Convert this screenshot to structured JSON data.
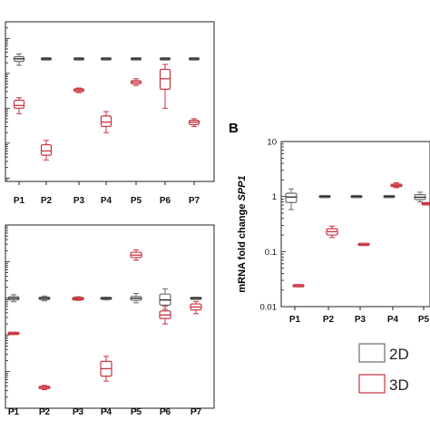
{
  "colors": {
    "2D": "#6b6b6b",
    "3D": "#c8323f",
    "axis": "#222222",
    "median": "#222222"
  },
  "legend": {
    "items": [
      {
        "label": "2D",
        "color": "#6b6b6b"
      },
      {
        "label": "3D",
        "color": "#c8323f"
      }
    ]
  },
  "chart_data": [
    {
      "type": "boxplot",
      "panel": "",
      "scale": "log",
      "categories": [
        "P1",
        "P2",
        "P3",
        "P4",
        "P5",
        "P6",
        "P7"
      ],
      "ylabel": "",
      "yticks": [],
      "ylim": [
        0.0008,
        30
      ],
      "series": [
        {
          "name": "2D",
          "boxes": [
            {
              "cat": "P1",
              "min": 1.7,
              "q1": 2.2,
              "median": 2.6,
              "q3": 3.0,
              "max": 3.6
            },
            {
              "cat": "P2",
              "min": 2.45,
              "q1": 2.5,
              "median": 2.6,
              "q3": 2.7,
              "max": 2.75
            },
            {
              "cat": "P3",
              "min": 2.45,
              "q1": 2.5,
              "median": 2.6,
              "q3": 2.7,
              "max": 2.75
            },
            {
              "cat": "P4",
              "min": 2.5,
              "q1": 2.55,
              "median": 2.6,
              "q3": 2.65,
              "max": 2.7
            },
            {
              "cat": "P5",
              "min": 2.45,
              "q1": 2.5,
              "median": 2.6,
              "q3": 2.7,
              "max": 2.75
            },
            {
              "cat": "P6",
              "min": 2.5,
              "q1": 2.55,
              "median": 2.6,
              "q3": 2.65,
              "max": 2.7
            },
            {
              "cat": "P7",
              "min": 2.6,
              "q1": 2.6,
              "median": 2.6,
              "q3": 2.6,
              "max": 2.6
            }
          ]
        },
        {
          "name": "3D",
          "boxes": [
            {
              "cat": "P1",
              "min": 0.07,
              "q1": 0.1,
              "median": 0.12,
              "q3": 0.17,
              "max": 0.2
            },
            {
              "cat": "P2",
              "min": 0.0033,
              "q1": 0.0045,
              "median": 0.006,
              "q3": 0.009,
              "max": 0.012
            },
            {
              "cat": "P3",
              "min": 0.28,
              "q1": 0.3,
              "median": 0.33,
              "q3": 0.36,
              "max": 0.38
            },
            {
              "cat": "P4",
              "min": 0.02,
              "q1": 0.03,
              "median": 0.04,
              "q3": 0.06,
              "max": 0.08
            },
            {
              "cat": "P5",
              "min": 0.45,
              "q1": 0.5,
              "median": 0.56,
              "q3": 0.62,
              "max": 0.7
            },
            {
              "cat": "P6",
              "min": 0.1,
              "q1": 0.35,
              "median": 0.7,
              "q3": 1.3,
              "max": 1.8
            },
            {
              "cat": "P7",
              "min": 0.03,
              "q1": 0.034,
              "median": 0.04,
              "q3": 0.045,
              "max": 0.05
            }
          ]
        }
      ]
    },
    {
      "type": "boxplot",
      "panel": "",
      "scale": "log",
      "categories": [
        "P1",
        "P2",
        "P3",
        "P4",
        "P5",
        "P6",
        "P7"
      ],
      "ylabel": "",
      "yticks": [],
      "ylim": [
        0.001,
        100
      ],
      "series": [
        {
          "name": "2D",
          "boxes": [
            {
              "cat": "P1",
              "min": 0.8,
              "q1": 0.9,
              "median": 1.0,
              "q3": 1.1,
              "max": 1.25
            },
            {
              "cat": "P2",
              "min": 0.85,
              "q1": 0.92,
              "median": 1.0,
              "q3": 1.08,
              "max": 1.15
            },
            {
              "cat": "P3",
              "min": 0.88,
              "q1": 0.94,
              "median": 1.0,
              "q3": 1.05,
              "max": 1.1
            },
            {
              "cat": "P4",
              "min": 0.9,
              "q1": 0.95,
              "median": 1.0,
              "q3": 1.04,
              "max": 1.08
            },
            {
              "cat": "P5",
              "min": 0.75,
              "q1": 0.88,
              "median": 1.0,
              "q3": 1.12,
              "max": 1.35
            },
            {
              "cat": "P6",
              "min": 0.5,
              "q1": 0.65,
              "median": 0.9,
              "q3": 1.3,
              "max": 1.8
            },
            {
              "cat": "P7",
              "min": 1.0,
              "q1": 1.0,
              "median": 1.0,
              "q3": 1.0,
              "max": 1.0
            }
          ]
        },
        {
          "name": "3D",
          "boxes": [
            {
              "cat": "P1",
              "min": 0.11,
              "q1": 0.11,
              "median": 0.11,
              "q3": 0.11,
              "max": 0.11
            },
            {
              "cat": "P2",
              "min": 0.0032,
              "q1": 0.0035,
              "median": 0.0037,
              "q3": 0.0039,
              "max": 0.0042
            },
            {
              "cat": "P3",
              "min": 0.88,
              "q1": 0.92,
              "median": 0.97,
              "q3": 1.02,
              "max": 1.07
            },
            {
              "cat": "P4",
              "min": 0.0055,
              "q1": 0.0075,
              "median": 0.012,
              "q3": 0.019,
              "max": 0.026
            },
            {
              "cat": "P5",
              "min": 11,
              "q1": 13,
              "median": 15,
              "q3": 18,
              "max": 21
            },
            {
              "cat": "P6",
              "min": 0.2,
              "q1": 0.28,
              "median": 0.35,
              "q3": 0.45,
              "max": 0.6
            },
            {
              "cat": "P7",
              "min": 0.38,
              "q1": 0.48,
              "median": 0.58,
              "q3": 0.7,
              "max": 0.82
            }
          ]
        }
      ]
    },
    {
      "type": "boxplot",
      "panel": "B",
      "scale": "log",
      "categories": [
        "P1",
        "P2",
        "P3",
        "P4",
        "P5"
      ],
      "ylabel": "mRNA fold change",
      "ylabel_gene": "SPP1",
      "yticks": [
        {
          "value": 10,
          "label": "10"
        },
        {
          "value": 1,
          "label": "1"
        },
        {
          "value": 0.1,
          "label": "0.1"
        },
        {
          "value": 0.01,
          "label": "0.01"
        }
      ],
      "ylim": [
        0.01,
        10
      ],
      "series": [
        {
          "name": "2D",
          "boxes": [
            {
              "cat": "P1",
              "min": 0.58,
              "q1": 0.78,
              "median": 0.98,
              "q3": 1.15,
              "max": 1.38
            },
            {
              "cat": "P2",
              "min": 0.96,
              "q1": 0.98,
              "median": 1.0,
              "q3": 1.02,
              "max": 1.04
            },
            {
              "cat": "P3",
              "min": 1.0,
              "q1": 1.0,
              "median": 1.0,
              "q3": 1.0,
              "max": 1.0
            },
            {
              "cat": "P4",
              "min": 1.0,
              "q1": 1.0,
              "median": 1.0,
              "q3": 1.0,
              "max": 1.0
            },
            {
              "cat": "P5",
              "min": 0.8,
              "q1": 0.88,
              "median": 0.97,
              "q3": 1.08,
              "max": 1.2
            }
          ]
        },
        {
          "name": "3D",
          "boxes": [
            {
              "cat": "P1",
              "min": 0.024,
              "q1": 0.024,
              "median": 0.024,
              "q3": 0.024,
              "max": 0.024
            },
            {
              "cat": "P2",
              "min": 0.18,
              "q1": 0.2,
              "median": 0.23,
              "q3": 0.26,
              "max": 0.29
            },
            {
              "cat": "P3",
              "min": 0.135,
              "q1": 0.135,
              "median": 0.135,
              "q3": 0.135,
              "max": 0.135
            },
            {
              "cat": "P4",
              "min": 1.45,
              "q1": 1.52,
              "median": 1.6,
              "q3": 1.68,
              "max": 1.78
            },
            {
              "cat": "P5",
              "min": 0.72,
              "q1": 0.73,
              "median": 0.74,
              "q3": 0.75,
              "max": 0.76
            }
          ]
        }
      ]
    }
  ]
}
